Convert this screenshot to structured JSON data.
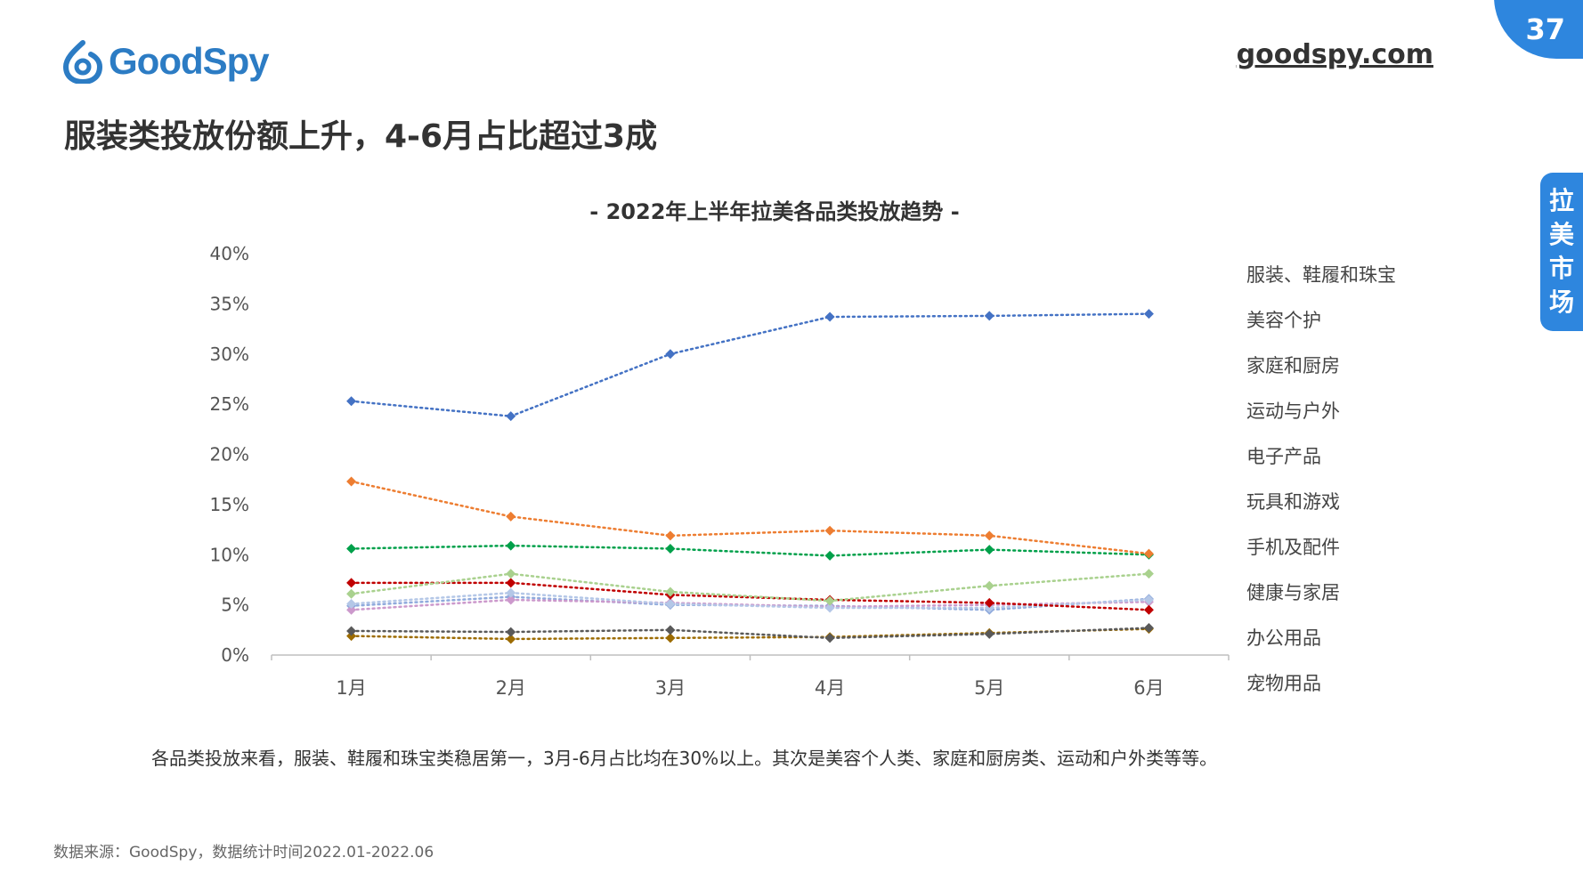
{
  "header": {
    "logo_text": "GoodSpy",
    "site": "goodspy.com",
    "page_number": "37",
    "side_tab": "拉美市场",
    "title": "服装类投放份额上升，4-6月占比超过3成"
  },
  "colors": {
    "brand": "#2e86de"
  },
  "chart_data": {
    "type": "line",
    "title": "- 2022年上半年拉美各品类投放趋势 -",
    "categories": [
      "1月",
      "2月",
      "3月",
      "4月",
      "5月",
      "6月"
    ],
    "y_ticks": [
      "0%",
      "5%",
      "10%",
      "15%",
      "20%",
      "25%",
      "30%",
      "35%",
      "40%"
    ],
    "ylim": [
      0,
      40
    ],
    "legend_position": "right",
    "grid": false,
    "series": [
      {
        "name": "服装、鞋履和珠宝",
        "color": "#4472c4",
        "values": [
          25.3,
          23.8,
          30.0,
          33.7,
          33.8,
          34.0
        ]
      },
      {
        "name": "美容个护",
        "color": "#ed7d31",
        "values": [
          17.3,
          13.8,
          11.9,
          12.4,
          11.9,
          10.1
        ]
      },
      {
        "name": "家庭和厨房",
        "color": "#00a04a",
        "values": [
          10.6,
          10.9,
          10.6,
          9.9,
          10.5,
          10.0
        ]
      },
      {
        "name": "运动与户外",
        "color": "#a9d18e",
        "values": [
          6.1,
          8.1,
          6.3,
          5.4,
          6.9,
          8.1
        ]
      },
      {
        "name": "电子产品",
        "color": "#c00000",
        "values": [
          7.2,
          7.2,
          6.0,
          5.5,
          5.2,
          4.5
        ]
      },
      {
        "name": "玩具和游戏",
        "color": "#b4c7e7",
        "values": [
          5.1,
          6.2,
          5.1,
          4.7,
          4.7,
          5.5
        ]
      },
      {
        "name": "手机及配件",
        "color": "#cc99cc",
        "values": [
          4.5,
          5.5,
          5.2,
          4.8,
          5.0,
          5.3
        ]
      },
      {
        "name": "健康与家居",
        "color": "#8faadc",
        "values": [
          4.9,
          5.8,
          5.0,
          4.9,
          4.5,
          5.6
        ]
      },
      {
        "name": "办公用品",
        "color": "#595959",
        "values": [
          2.4,
          2.3,
          2.5,
          1.7,
          2.1,
          2.7
        ]
      },
      {
        "name": "宠物用品",
        "color": "#9c6b00",
        "values": [
          1.9,
          1.6,
          1.7,
          1.8,
          2.2,
          2.6
        ]
      }
    ]
  },
  "description": "各品类投放来看，服装、鞋履和珠宝类稳居第一，3月-6月占比均在30%以上。其次是美容个人类、家庭和厨房类、运动和户外类等等。",
  "source": "数据来源：GoodSpy，数据统计时间2022.01-2022.06"
}
